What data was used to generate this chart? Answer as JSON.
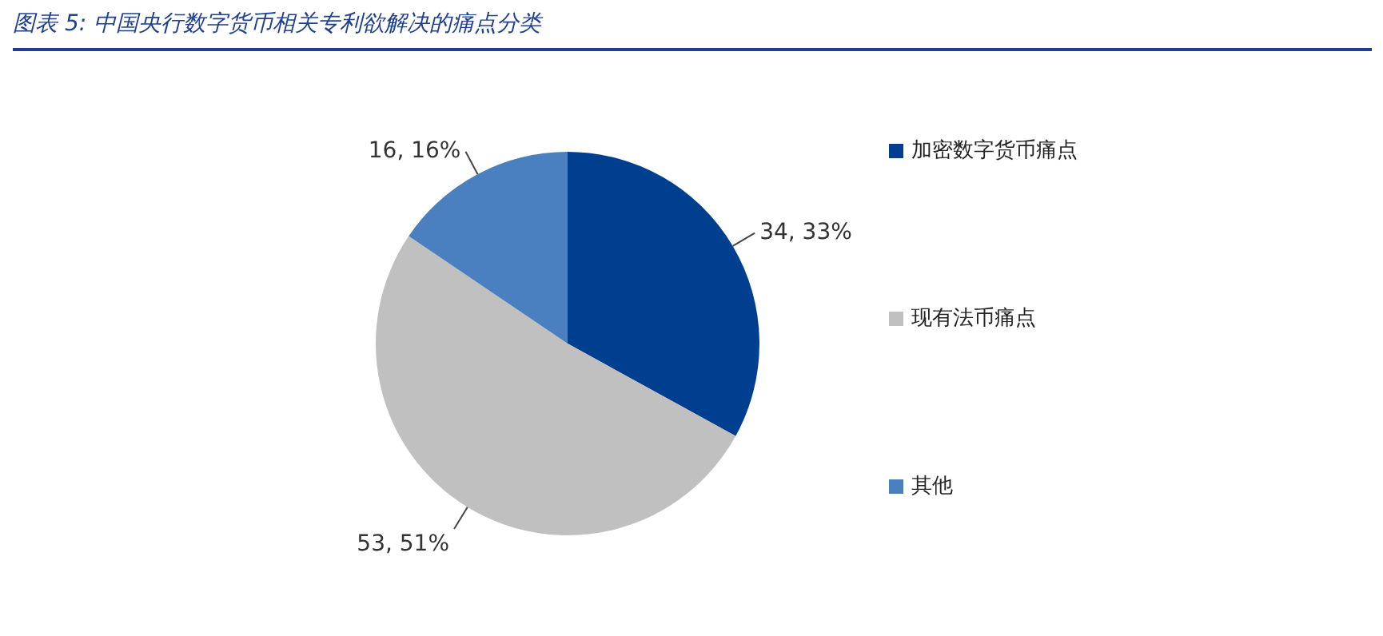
{
  "chart_data": {
    "type": "pie",
    "title": "图表 5: 中国央行数字货币相关专利欲解决的痛点分类",
    "categories": [
      "加密数字货币痛点",
      "现有法币痛点",
      "其他"
    ],
    "values": [
      34,
      53,
      16
    ],
    "colors": [
      "#003f8f",
      "#c0c0c0",
      "#4a80c0"
    ],
    "value_labels": [
      "34, 33%",
      "53, 51%",
      "16, 16%"
    ],
    "legend": "right"
  }
}
